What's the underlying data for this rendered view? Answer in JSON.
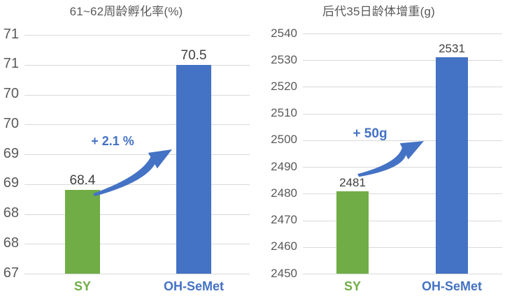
{
  "page": {
    "background": "#FFFFFF"
  },
  "colors": {
    "green": "#70AD47",
    "blue": "#4472C4",
    "grid": "#D9D9D9",
    "axis_text": "#595959",
    "data_label": "#404040",
    "title_text": "#595959"
  },
  "chart_data": [
    {
      "type": "bar",
      "title": "61~62周龄孵化率(%)",
      "xlabel": "",
      "ylabel": "",
      "categories": [
        "SY",
        "OH-SeMet"
      ],
      "values": [
        68.4,
        70.5
      ],
      "value_labels": [
        "68.4",
        "70.5"
      ],
      "bar_colors": [
        "#70AD47",
        "#4472C4"
      ],
      "category_colors": [
        "#70AD47",
        "#4472C4"
      ],
      "ylim": [
        67,
        71
      ],
      "ytick_step": 0.5,
      "ytick_labels": [
        "71",
        "71",
        "70",
        "70",
        "69",
        "69",
        "68",
        "68",
        "67"
      ],
      "grid": true,
      "legend": false,
      "annotation": {
        "text": "+ 2.1 %",
        "color": "#4472C4"
      },
      "arrow": {
        "from": "SY",
        "to": "OH-SeMet",
        "color": "#4472C4"
      }
    },
    {
      "type": "bar",
      "title": "后代35日龄体增重(g)",
      "xlabel": "",
      "ylabel": "",
      "categories": [
        "SY",
        "OH-SeMet"
      ],
      "values": [
        2481,
        2531
      ],
      "value_labels": [
        "2481",
        "2531"
      ],
      "bar_colors": [
        "#70AD47",
        "#4472C4"
      ],
      "category_colors": [
        "#70AD47",
        "#4472C4"
      ],
      "ylim": [
        2450,
        2540
      ],
      "ytick_step": 10,
      "ytick_labels": [
        "2540",
        "2530",
        "2520",
        "2510",
        "2500",
        "2490",
        "2480",
        "2470",
        "2460",
        "2450"
      ],
      "grid": true,
      "legend": false,
      "annotation": {
        "text": "+ 50g",
        "color": "#4472C4"
      },
      "arrow": {
        "from": "SY",
        "to": "OH-SeMet",
        "color": "#4472C4"
      }
    }
  ]
}
